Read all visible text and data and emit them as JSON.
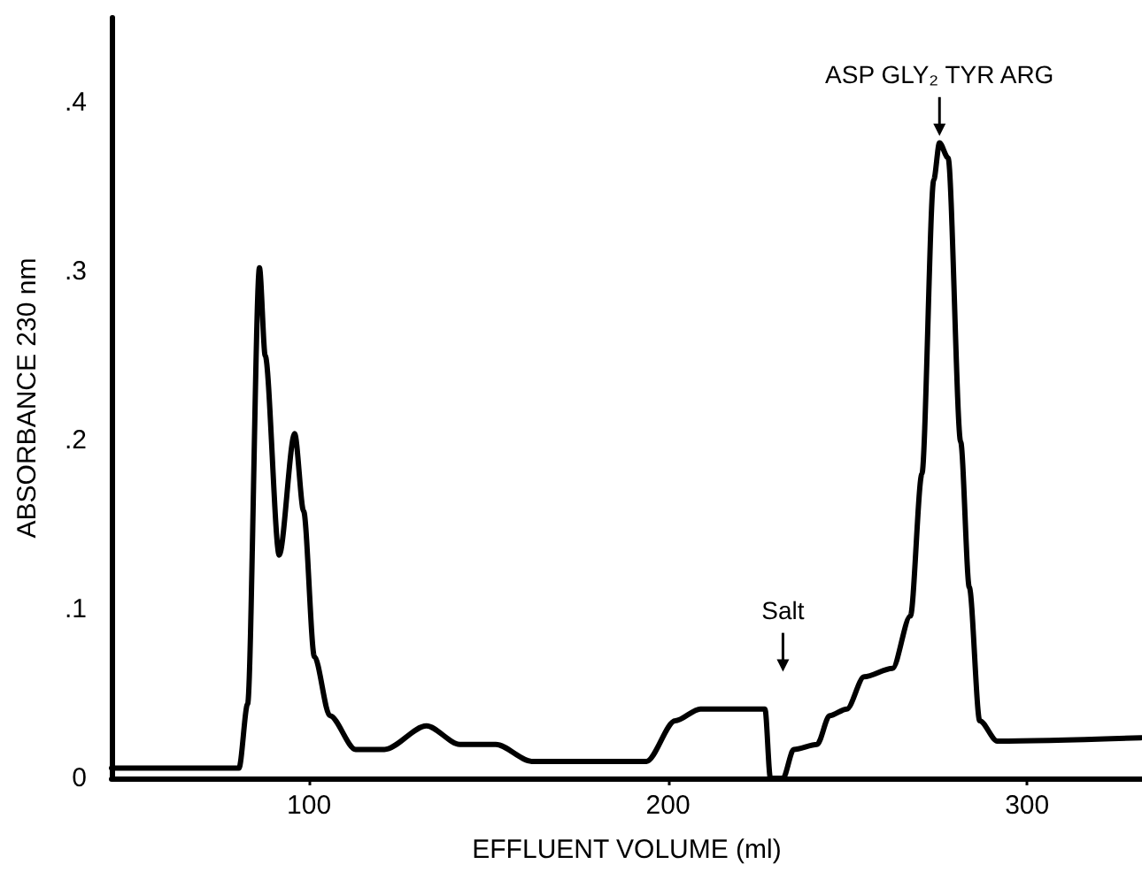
{
  "chart_data": {
    "type": "line",
    "xlabel": "EFFLUENT VOLUME (ml)",
    "ylabel": "ABSORBANCE 230 nm",
    "x": [
      45,
      80.5,
      82.9,
      86.2,
      87.8,
      91.7,
      96,
      98.5,
      101.5,
      105.8,
      113,
      121,
      132.7,
      142,
      152,
      162,
      194,
      202,
      209,
      227,
      228.5,
      232,
      235,
      241.5,
      245,
      249.8,
      254.6,
      262.5,
      267.5,
      270.7,
      274,
      275.6,
      278,
      281.5,
      283.9,
      286.8,
      291.7,
      331.7
    ],
    "series": [
      {
        "color": "#000000",
        "values": [
          0.006,
          0.006,
          0.044,
          0.302,
          0.25,
          0.132,
          0.204,
          0.158,
          0.072,
          0.037,
          0.017,
          0.017,
          0.031,
          0.02,
          0.02,
          0.01,
          0.01,
          0.034,
          0.041,
          0.041,
          0,
          0,
          0.017,
          0.02,
          0.037,
          0.041,
          0.06,
          0.065,
          0.096,
          0.18,
          0.354,
          0.376,
          0.367,
          0.199,
          0.113,
          0.034,
          0.022,
          0.024
        ]
      }
    ],
    "xlim": [
      45,
      332
    ],
    "xticks": [
      100,
      200,
      300
    ],
    "ylim": [
      0,
      0.45
    ],
    "yticks": [
      0,
      {
        "value": 0.1,
        "label": ".1"
      },
      {
        "value": 0.2,
        "label": ".2"
      },
      {
        "value": 0.3,
        "label": ".3"
      },
      {
        "value": 0.4,
        "label": ".4"
      }
    ],
    "annotations": [
      {
        "text": "Salt",
        "x": 232
      },
      {
        "text": "ASP GLY₂ TYR ARG",
        "x": 275.6,
        "y": 0.38
      }
    ],
    "grid": false,
    "marker": "none",
    "line_style": "solid"
  }
}
